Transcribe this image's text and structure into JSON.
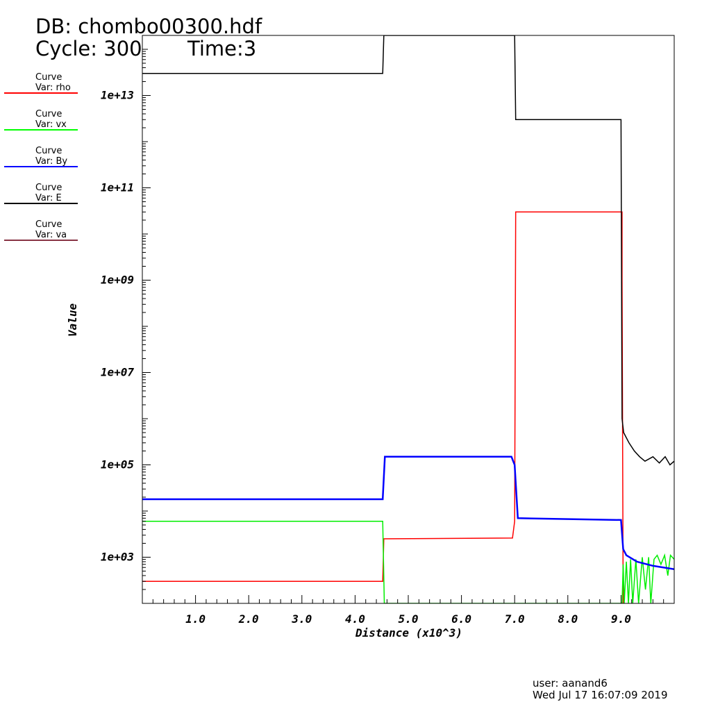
{
  "header": {
    "db_line": "DB: chombo00300.hdf",
    "cycle_label": "Cycle: 300",
    "time_label": "Time:3"
  },
  "legend": [
    {
      "title": "Curve",
      "var": "Var: rho",
      "color": "#ff0000"
    },
    {
      "title": "Curve",
      "var": "Var: vx",
      "color": "#00ff00"
    },
    {
      "title": "Curve",
      "var": "Var: By",
      "color": "#0000ff"
    },
    {
      "title": "Curve",
      "var": "Var: E",
      "color": "#000000"
    },
    {
      "title": "Curve",
      "var": "Var: va",
      "color": "#883344"
    }
  ],
  "footer": {
    "user": "user: aanand6",
    "timestamp": "Wed Jul 17 16:07:09 2019"
  },
  "chart_data": {
    "type": "line",
    "xlabel": "Distance (x10^3)",
    "ylabel": "Value",
    "xlim": [
      0,
      10
    ],
    "ylim": [
      100,
      200000000000000.0
    ],
    "yscale": "log",
    "grid": false,
    "legend_position": "left",
    "x_ticks": [
      {
        "value": 1,
        "label": "1.0"
      },
      {
        "value": 2,
        "label": "2.0"
      },
      {
        "value": 3,
        "label": "3.0"
      },
      {
        "value": 4,
        "label": "4.0"
      },
      {
        "value": 5,
        "label": "5.0"
      },
      {
        "value": 6,
        "label": "6.0"
      },
      {
        "value": 7,
        "label": "7.0"
      },
      {
        "value": 8,
        "label": "8.0"
      },
      {
        "value": 9,
        "label": "9.0"
      }
    ],
    "y_ticks": [
      {
        "value": 1000.0,
        "label": "1e+03"
      },
      {
        "value": 100000.0,
        "label": "1e+05"
      },
      {
        "value": 10000000.0,
        "label": "1e+07"
      },
      {
        "value": 1000000000.0,
        "label": "1e+09"
      },
      {
        "value": 100000000000.0,
        "label": "1e+11"
      },
      {
        "value": 10000000000000.0,
        "label": "1e+13"
      }
    ],
    "series": [
      {
        "name": "rho",
        "color": "#ff0000",
        "width": 1.5,
        "points": [
          [
            0,
            300
          ],
          [
            4.52,
            300
          ],
          [
            4.54,
            2500
          ],
          [
            6.96,
            2600
          ],
          [
            7.0,
            6000
          ],
          [
            7.02,
            30000000000.0
          ],
          [
            9.02,
            30000000000.0
          ],
          [
            9.02,
            1000000000.0
          ],
          [
            9.04,
            100
          ]
        ]
      },
      {
        "name": "vx",
        "color": "#00ee00",
        "width": 1.5,
        "points": [
          [
            0,
            6000
          ],
          [
            4.52,
            6000
          ],
          [
            4.55,
            100
          ],
          [
            9.02,
            100
          ],
          [
            9.04,
            700
          ],
          [
            9.06,
            100
          ],
          [
            9.1,
            800
          ],
          [
            9.14,
            100
          ],
          [
            9.18,
            900
          ],
          [
            9.22,
            100
          ],
          [
            9.28,
            900
          ],
          [
            9.33,
            100
          ],
          [
            9.4,
            1000
          ],
          [
            9.46,
            200
          ],
          [
            9.52,
            1000
          ],
          [
            9.56,
            100
          ],
          [
            9.62,
            900
          ],
          [
            9.68,
            1100
          ],
          [
            9.75,
            700
          ],
          [
            9.82,
            1100
          ],
          [
            9.88,
            400
          ],
          [
            9.93,
            1100
          ],
          [
            10,
            900
          ]
        ]
      },
      {
        "name": "By",
        "color": "#0000ff",
        "width": 2.5,
        "points": [
          [
            0,
            18000
          ],
          [
            4.52,
            18000
          ],
          [
            4.56,
            150000
          ],
          [
            6.94,
            150000
          ],
          [
            7.0,
            100000
          ],
          [
            7.06,
            7000
          ],
          [
            9.0,
            6400
          ],
          [
            9.04,
            1500
          ],
          [
            9.1,
            1100
          ],
          [
            9.3,
            800
          ],
          [
            9.6,
            650
          ],
          [
            10,
            550
          ]
        ]
      },
      {
        "name": "E",
        "color": "#000000",
        "width": 1.5,
        "points": [
          [
            0,
            30000000000000.0
          ],
          [
            4.52,
            30000000000000.0
          ],
          [
            4.54,
            200000000000000.0
          ],
          [
            7.0,
            200000000000000.0
          ],
          [
            7.02,
            3000000000000.0
          ],
          [
            9.0,
            3000000000000.0
          ],
          [
            9.02,
            1000000.0
          ],
          [
            9.05,
            500000
          ],
          [
            9.15,
            300000
          ],
          [
            9.25,
            200000
          ],
          [
            9.35,
            150000
          ],
          [
            9.45,
            120000
          ],
          [
            9.6,
            150000
          ],
          [
            9.72,
            110000
          ],
          [
            9.83,
            150000
          ],
          [
            9.92,
            100000
          ],
          [
            10,
            120000
          ]
        ]
      },
      {
        "name": "va",
        "color": "#883344",
        "width": 1.5,
        "points": []
      }
    ]
  }
}
